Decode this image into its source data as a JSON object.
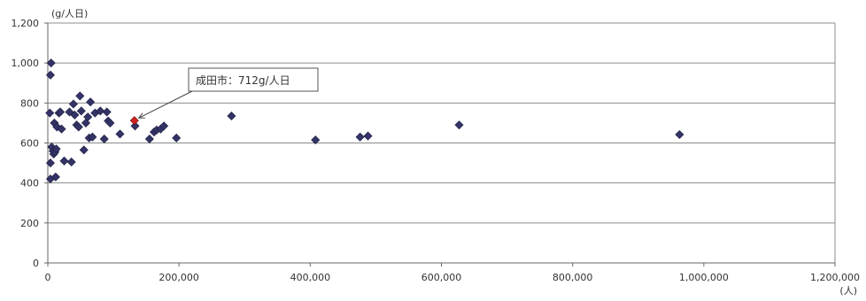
{
  "chart_data": {
    "type": "scatter",
    "y_unit_label": "(g/人日)",
    "x_unit_label": "(人)",
    "xlim": [
      0,
      1200000
    ],
    "ylim": [
      0,
      1200
    ],
    "x_ticks": [
      0,
      200000,
      400000,
      600000,
      800000,
      1000000,
      1200000
    ],
    "x_tick_labels": [
      "0",
      "200,000",
      "400,000",
      "600,000",
      "800,000",
      "1,000,000",
      "1,200,000"
    ],
    "y_ticks": [
      0,
      200,
      400,
      600,
      800,
      1000,
      1200
    ],
    "y_tick_labels": [
      "0",
      "200",
      "400",
      "600",
      "800",
      "1,000",
      "1,200"
    ],
    "grid": "horizontal",
    "marker_color": "#333366",
    "highlight_color": "#cc2222",
    "points": [
      {
        "x": 5000,
        "y": 1000
      },
      {
        "x": 4000,
        "y": 940
      },
      {
        "x": 3000,
        "y": 750
      },
      {
        "x": 6000,
        "y": 580
      },
      {
        "x": 8000,
        "y": 560
      },
      {
        "x": 9000,
        "y": 545
      },
      {
        "x": 11000,
        "y": 555
      },
      {
        "x": 13000,
        "y": 570
      },
      {
        "x": 10000,
        "y": 700
      },
      {
        "x": 14000,
        "y": 680
      },
      {
        "x": 4000,
        "y": 500
      },
      {
        "x": 4000,
        "y": 420
      },
      {
        "x": 12000,
        "y": 430
      },
      {
        "x": 17000,
        "y": 750
      },
      {
        "x": 19000,
        "y": 755
      },
      {
        "x": 21000,
        "y": 670
      },
      {
        "x": 25000,
        "y": 510
      },
      {
        "x": 33000,
        "y": 755
      },
      {
        "x": 36000,
        "y": 505
      },
      {
        "x": 39000,
        "y": 795
      },
      {
        "x": 41000,
        "y": 740
      },
      {
        "x": 44000,
        "y": 690
      },
      {
        "x": 47000,
        "y": 680
      },
      {
        "x": 49000,
        "y": 835
      },
      {
        "x": 51000,
        "y": 760
      },
      {
        "x": 55000,
        "y": 565
      },
      {
        "x": 58000,
        "y": 700
      },
      {
        "x": 61000,
        "y": 730
      },
      {
        "x": 63000,
        "y": 625
      },
      {
        "x": 65000,
        "y": 805
      },
      {
        "x": 68000,
        "y": 630
      },
      {
        "x": 72000,
        "y": 750
      },
      {
        "x": 80000,
        "y": 760
      },
      {
        "x": 86000,
        "y": 620
      },
      {
        "x": 90000,
        "y": 755
      },
      {
        "x": 92000,
        "y": 710
      },
      {
        "x": 95000,
        "y": 700
      },
      {
        "x": 110000,
        "y": 645
      },
      {
        "x": 133000,
        "y": 685
      },
      {
        "x": 155000,
        "y": 620
      },
      {
        "x": 162000,
        "y": 655
      },
      {
        "x": 166000,
        "y": 665
      },
      {
        "x": 172000,
        "y": 670
      },
      {
        "x": 177000,
        "y": 685
      },
      {
        "x": 196000,
        "y": 625
      },
      {
        "x": 280000,
        "y": 735
      },
      {
        "x": 408000,
        "y": 615
      },
      {
        "x": 476000,
        "y": 630
      },
      {
        "x": 488000,
        "y": 635
      },
      {
        "x": 627000,
        "y": 690
      },
      {
        "x": 963000,
        "y": 642
      }
    ],
    "highlight_point": {
      "x": 132000,
      "y": 712
    },
    "annotation": "成田市：712g/人日"
  }
}
